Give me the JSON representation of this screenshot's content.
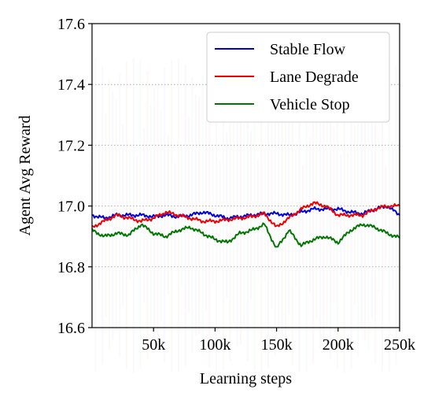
{
  "chart_data": {
    "type": "line",
    "xlabel": "Learning steps",
    "ylabel": "Agent Avg Reward",
    "xlim": [
      0,
      250000
    ],
    "ylim": [
      16.6,
      17.6
    ],
    "x_ticks": [
      50000,
      100000,
      150000,
      200000,
      250000
    ],
    "x_tick_labels": [
      "50k",
      "100k",
      "150k",
      "200k",
      "250k"
    ],
    "y_ticks": [
      16.6,
      16.8,
      17.0,
      17.2,
      17.4,
      17.6
    ],
    "y_tick_labels": [
      "16.6",
      "16.8",
      "17.0",
      "17.2",
      "17.4",
      "17.6"
    ],
    "grid": "horizontal dotted",
    "legend_position": "top-right",
    "x": [
      0,
      10000,
      20000,
      30000,
      40000,
      50000,
      60000,
      70000,
      80000,
      90000,
      100000,
      110000,
      120000,
      130000,
      140000,
      150000,
      160000,
      170000,
      180000,
      190000,
      200000,
      210000,
      220000,
      230000,
      240000,
      250000
    ],
    "series": [
      {
        "name": "Stable Flow",
        "color": "#0000dd",
        "values": [
          16.97,
          16.96,
          16.97,
          16.97,
          16.97,
          16.965,
          16.97,
          16.965,
          16.97,
          16.98,
          16.97,
          16.96,
          16.965,
          16.97,
          16.975,
          16.975,
          16.97,
          16.98,
          16.99,
          16.99,
          16.99,
          16.98,
          16.975,
          16.99,
          17.0,
          16.97
        ]
      },
      {
        "name": "Lane Degrade",
        "color": "#ee0000",
        "values": [
          16.93,
          16.95,
          16.97,
          16.96,
          16.95,
          16.96,
          16.98,
          16.97,
          16.96,
          16.95,
          16.95,
          16.955,
          16.96,
          16.965,
          16.975,
          16.93,
          16.96,
          16.99,
          17.01,
          17.0,
          16.97,
          16.97,
          16.97,
          16.99,
          17.0,
          17.0
        ]
      },
      {
        "name": "Vehicle Stop",
        "color": "#007700",
        "values": [
          16.92,
          16.9,
          16.91,
          16.905,
          16.94,
          16.91,
          16.9,
          16.92,
          16.93,
          16.91,
          16.89,
          16.88,
          16.91,
          16.92,
          16.94,
          16.86,
          16.92,
          16.87,
          16.89,
          16.9,
          16.88,
          16.92,
          16.94,
          16.93,
          16.91,
          16.895
        ]
      }
    ]
  }
}
